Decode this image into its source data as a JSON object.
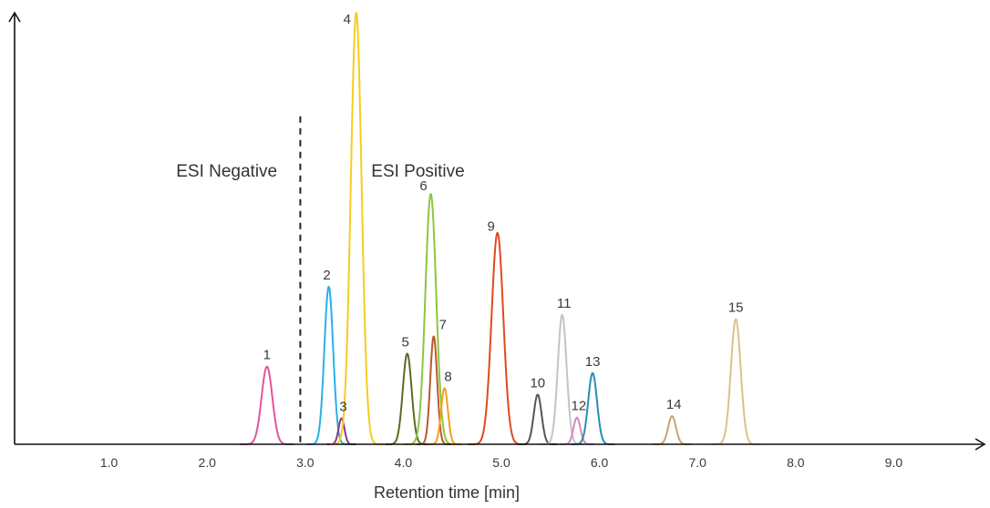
{
  "chart_data": {
    "type": "line",
    "xlabel": "Retention time [min]",
    "ylabel": "",
    "xlim": [
      0,
      10
    ],
    "x_ticks": [
      "1.0",
      "2.0",
      "3.0",
      "4.0",
      "5.0",
      "6.0",
      "7.0",
      "8.0",
      "9.0"
    ],
    "y_ticks": [],
    "grid": false,
    "divider": {
      "x": 2.95,
      "style": "dashed"
    },
    "annotations": [
      {
        "text": "ESI Negative",
        "x": 2.2,
        "y": 0.62
      },
      {
        "text": "ESI Positive",
        "x": 4.15,
        "y": 0.62
      }
    ],
    "series": [
      {
        "label": "1",
        "x": 2.61,
        "y": 0.18,
        "width": 0.055,
        "color": "#e0559b"
      },
      {
        "label": "2",
        "x": 3.24,
        "y": 0.365,
        "width": 0.045,
        "color": "#2ab0e6"
      },
      {
        "label": "3",
        "x": 3.37,
        "y": 0.06,
        "width": 0.03,
        "color": "#8c3a8a"
      },
      {
        "label": "4",
        "x": 3.52,
        "y": 1.0,
        "width": 0.055,
        "color": "#f5cd1e"
      },
      {
        "label": "5",
        "x": 4.04,
        "y": 0.21,
        "width": 0.045,
        "color": "#5b6b24"
      },
      {
        "label": "6",
        "x": 4.28,
        "y": 0.58,
        "width": 0.055,
        "color": "#8cc63e"
      },
      {
        "label": "7",
        "x": 4.31,
        "y": 0.25,
        "width": 0.035,
        "color": "#b8592e"
      },
      {
        "label": "8",
        "x": 4.42,
        "y": 0.13,
        "width": 0.035,
        "color": "#f2a01e"
      },
      {
        "label": "9",
        "x": 4.96,
        "y": 0.49,
        "width": 0.06,
        "color": "#e2491f"
      },
      {
        "label": "10",
        "x": 5.37,
        "y": 0.115,
        "width": 0.04,
        "color": "#555555"
      },
      {
        "label": "11",
        "x": 5.62,
        "y": 0.3,
        "width": 0.045,
        "color": "#c4c4c4"
      },
      {
        "label": "12",
        "x": 5.77,
        "y": 0.062,
        "width": 0.035,
        "color": "#d68ab8"
      },
      {
        "label": "13",
        "x": 5.93,
        "y": 0.165,
        "width": 0.045,
        "color": "#2a8eb0"
      },
      {
        "label": "14",
        "x": 6.74,
        "y": 0.065,
        "width": 0.04,
        "color": "#c9a46a"
      },
      {
        "label": "15",
        "x": 7.39,
        "y": 0.29,
        "width": 0.05,
        "color": "#d8c48a"
      }
    ]
  }
}
